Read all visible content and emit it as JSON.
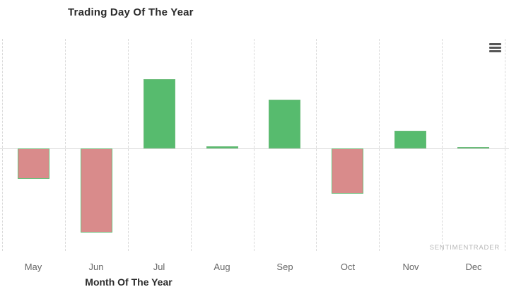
{
  "header": {
    "title": "Trading Day Of The Year"
  },
  "toolbar": {
    "export_menu_icon": "hamburger-menu-icon"
  },
  "watermark": "SENTIMENTRADER",
  "colors": {
    "positive_bar": "#57bb6e",
    "negative_bar": "#d98b8b",
    "bar_border": "#6cbc7a",
    "gridline": "#d9d9d9",
    "zero_line": "#d8d8d8",
    "title_text": "#2b2b2b",
    "axis_label_text": "#666666",
    "watermark_text": "#b7b7b7",
    "menu_icon": "#555555"
  },
  "chart_data": {
    "type": "bar",
    "title": "Trading Day Of The Year",
    "xlabel": "Month Of The Year",
    "ylabel": "",
    "categories": [
      "May",
      "Jun",
      "Jul",
      "Aug",
      "Sep",
      "Oct",
      "Nov",
      "Dec"
    ],
    "values": [
      -0.43,
      -1.19,
      0.98,
      0.03,
      0.69,
      -0.64,
      0.25,
      0.02
    ],
    "units": "relative (no y-axis tick labels shown in chart)",
    "ylim": [
      -1.45,
      1.55
    ],
    "zero_line": true,
    "grid": "vertical-dashed",
    "legend_position": "none"
  }
}
